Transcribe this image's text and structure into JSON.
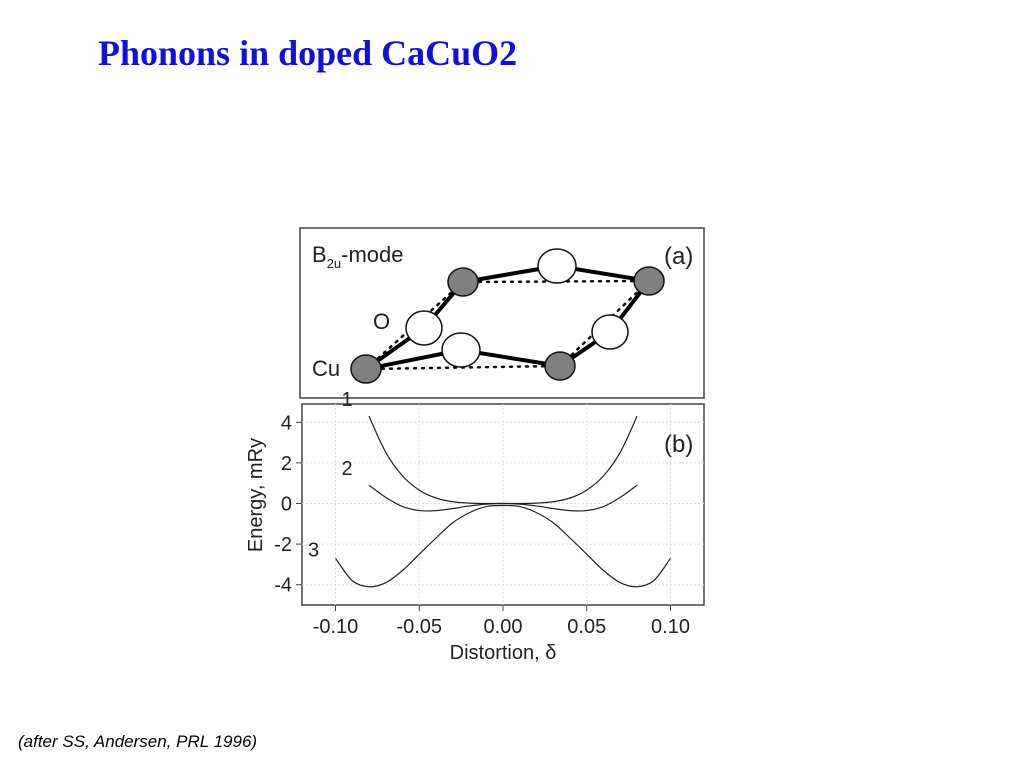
{
  "title": "Phonons in doped CaCuO2",
  "caption": "(after SS, Andersen, PRL 1996)",
  "panel_a": {
    "label": "(a)",
    "mode": "B",
    "mode_sub": "2u",
    "mode_suffix": "-mode",
    "o_label": "O",
    "cu_label": "Cu"
  },
  "chart_data": {
    "type": "line",
    "panel_label": "(b)",
    "x_label": "Distortion, δ",
    "y_label": "Energy, mRy",
    "x": [
      -0.1,
      -0.09,
      -0.08,
      -0.07,
      -0.06,
      -0.05,
      -0.04,
      -0.03,
      -0.02,
      -0.01,
      0.0,
      0.01,
      0.02,
      0.03,
      0.04,
      0.05,
      0.06,
      0.07,
      0.08,
      0.09,
      0.1
    ],
    "series": [
      {
        "name": "1",
        "color": "#222222",
        "values": [
          null,
          null,
          4.3,
          2.52,
          1.36,
          0.66,
          0.27,
          0.085,
          0.017,
          0.001,
          0,
          0.001,
          0.017,
          0.085,
          0.27,
          0.66,
          1.36,
          2.52,
          4.3,
          null,
          null
        ]
      },
      {
        "name": "2",
        "color": "#222222",
        "values": [
          null,
          null,
          0.9,
          0.3,
          -0.15,
          -0.35,
          -0.35,
          -0.25,
          -0.12,
          -0.03,
          0,
          -0.03,
          -0.12,
          -0.25,
          -0.35,
          -0.35,
          -0.15,
          0.3,
          0.9,
          null,
          null
        ]
      },
      {
        "name": "3",
        "color": "#222222",
        "values": [
          -2.7,
          -3.8,
          -4.1,
          -3.9,
          -3.3,
          -2.5,
          -1.7,
          -0.95,
          -0.45,
          -0.15,
          -0.1,
          -0.15,
          -0.45,
          -0.95,
          -1.7,
          -2.5,
          -3.3,
          -3.9,
          -4.1,
          -3.8,
          -2.7
        ]
      }
    ],
    "xlim": [
      -0.12,
      0.12
    ],
    "ylim": [
      -5,
      4.9
    ],
    "xticks": [
      {
        "value": -0.1,
        "label": "-0.10"
      },
      {
        "value": -0.05,
        "label": "-0.05"
      },
      {
        "value": 0,
        "label": "0.00"
      },
      {
        "value": 0.05,
        "label": "0.05"
      },
      {
        "value": 0.1,
        "label": "0.10"
      }
    ],
    "yticks": [
      -4,
      -2,
      0,
      2,
      4
    ],
    "grid": true
  }
}
